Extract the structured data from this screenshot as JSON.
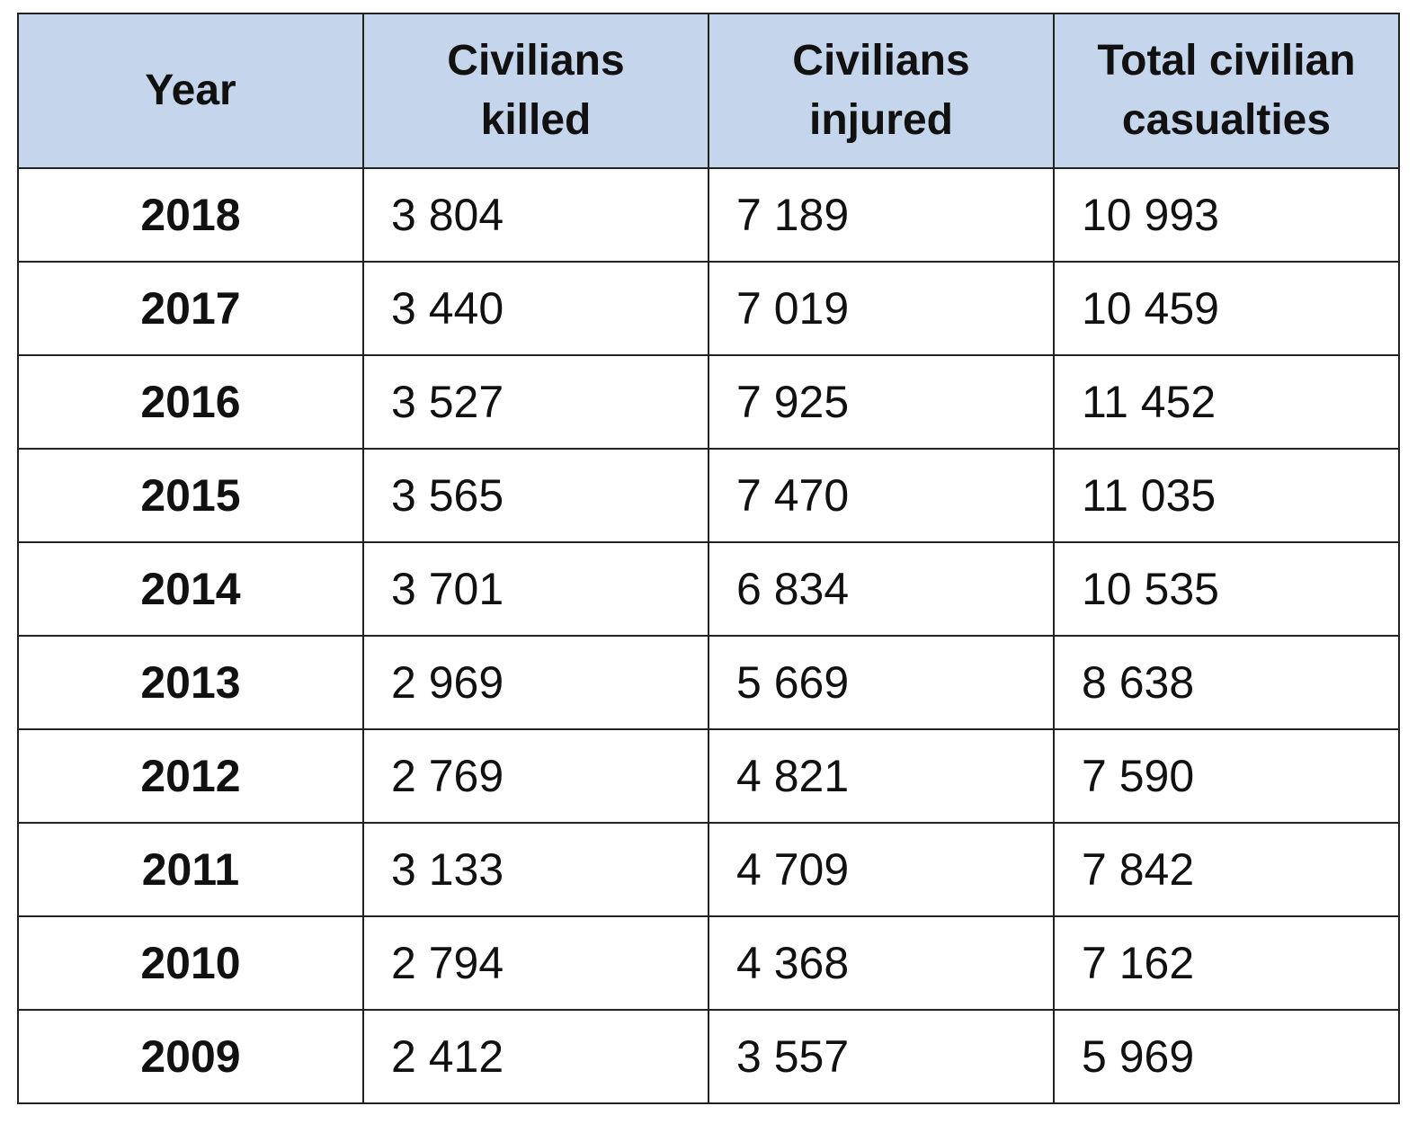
{
  "chart_data": {
    "type": "table",
    "columns": [
      "Year",
      "Civilians\nkilled",
      "Civilians\ninjured",
      "Total civilian\ncasualties"
    ],
    "rows": [
      {
        "year": "2018",
        "killed": "3 804",
        "injured": "7 189",
        "total": "10 993"
      },
      {
        "year": "2017",
        "killed": "3 440",
        "injured": "7 019",
        "total": "10 459"
      },
      {
        "year": "2016",
        "killed": "3 527",
        "injured": "7 925",
        "total": "11 452"
      },
      {
        "year": "2015",
        "killed": "3 565",
        "injured": "7 470",
        "total": "11 035"
      },
      {
        "year": "2014",
        "killed": "3 701",
        "injured": "6 834",
        "total": "10 535"
      },
      {
        "year": "2013",
        "killed": "2 969",
        "injured": "5 669",
        "total": "8 638"
      },
      {
        "year": "2012",
        "killed": "2 769",
        "injured": "4 821",
        "total": "7 590"
      },
      {
        "year": "2011",
        "killed": "3 133",
        "injured": "4 709",
        "total": "7 842"
      },
      {
        "year": "2010",
        "killed": "2 794",
        "injured": "4 368",
        "total": "7 162"
      },
      {
        "year": "2009",
        "killed": "2 412",
        "injured": "3 557",
        "total": "5 969"
      }
    ]
  },
  "colors": {
    "header_background": "#c5d6ec",
    "border": "#222222",
    "text": "#111111"
  }
}
